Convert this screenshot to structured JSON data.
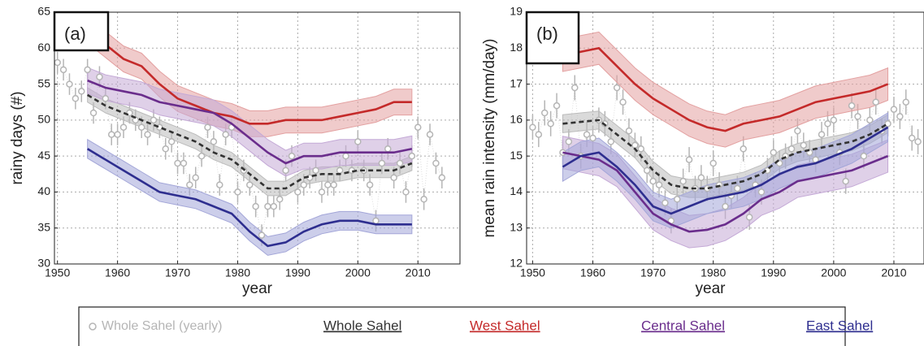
{
  "chart_data": [
    {
      "type": "line",
      "panel_label": "(a)",
      "x_label": "year",
      "y_label": "rainy days (#)",
      "xlim": [
        1949.5,
        2017
      ],
      "xticks": [
        1950,
        1960,
        1970,
        1980,
        1990,
        2000,
        2010
      ],
      "ylim": [
        30,
        65
      ],
      "yticks": [
        30,
        35,
        40,
        45,
        50,
        55,
        60,
        65
      ],
      "grid": true,
      "x": [
        1955,
        1958,
        1961,
        1964,
        1967,
        1970,
        1973,
        1976,
        1979,
        1982,
        1985,
        1988,
        1991,
        1994,
        1997,
        2000,
        2003,
        2006,
        2009
      ],
      "series": [
        {
          "name": "Whole Sahel",
          "color": "#333333",
          "band_color": "#bbbbbb",
          "dash": true,
          "band": 1,
          "values": [
            53.5,
            52,
            51,
            50,
            49,
            48,
            47,
            45.5,
            44.5,
            42.5,
            40.5,
            40.5,
            42,
            42.5,
            42.5,
            43,
            43,
            43,
            44
          ]
        },
        {
          "name": "West Sahel",
          "color": "#c42a2a",
          "band_color": "#e3a0a0",
          "dash": false,
          "band": 1.8,
          "values": [
            62.5,
            60.5,
            58.5,
            57.5,
            55,
            53,
            52,
            51,
            50.5,
            49.5,
            49.5,
            50,
            50,
            50,
            50.5,
            51,
            51.5,
            52.5,
            52.5
          ]
        },
        {
          "name": "Central Sahel",
          "color": "#6a2d8c",
          "band_color": "#c4a9d6",
          "dash": false,
          "band": 1.8,
          "values": [
            55.5,
            54.5,
            54,
            53.5,
            52.5,
            52,
            51.5,
            51,
            49.5,
            47.5,
            45.5,
            44,
            45,
            45,
            45.5,
            45.5,
            45.5,
            45.5,
            46
          ]
        },
        {
          "name": "East Sahel",
          "color": "#2e2e8f",
          "band_color": "#a3a6d8",
          "dash": false,
          "band": 1.3,
          "values": [
            46,
            44.5,
            43,
            41.5,
            40,
            39.5,
            39,
            38,
            37,
            34.5,
            32.5,
            33,
            34.5,
            35.5,
            36,
            36,
            35.5,
            35.5,
            35.5
          ]
        }
      ],
      "yearly": {
        "name": "Whole Sahel (yearly)",
        "color": "#b5b5b5",
        "error": 1.5,
        "x": [
          1950,
          1951,
          1952,
          1953,
          1954,
          1955,
          1956,
          1957,
          1958,
          1959,
          1960,
          1961,
          1962,
          1963,
          1964,
          1965,
          1966,
          1967,
          1968,
          1969,
          1970,
          1971,
          1972,
          1973,
          1974,
          1975,
          1976,
          1977,
          1978,
          1979,
          1980,
          1981,
          1982,
          1983,
          1984,
          1985,
          1986,
          1987,
          1988,
          1989,
          1990,
          1991,
          1992,
          1993,
          1994,
          1995,
          1996,
          1997,
          1998,
          1999,
          2000,
          2001,
          2002,
          2003,
          2004,
          2005,
          2006,
          2007,
          2008,
          2009,
          2010,
          2011,
          2012,
          2013,
          2014
        ],
        "values": [
          58,
          57,
          55,
          53,
          54,
          57,
          51,
          56,
          53,
          48,
          48,
          49,
          51,
          50,
          49,
          48,
          50,
          49,
          46,
          47,
          44,
          44,
          41,
          42,
          45,
          49,
          47,
          41,
          48,
          49,
          40,
          43,
          41,
          38,
          34,
          38,
          38,
          39,
          43,
          45,
          40,
          41,
          42,
          43,
          40,
          41,
          41,
          43,
          45,
          43,
          47,
          43,
          41,
          36,
          44,
          46,
          42,
          44,
          40,
          45,
          49,
          39,
          48,
          44,
          42
        ]
      }
    },
    {
      "type": "line",
      "panel_label": "(b)",
      "x_label": "year",
      "y_label": "mean rain intensity (mm/day)",
      "xlim": [
        1949,
        2015
      ],
      "xticks": [
        1950,
        1960,
        1970,
        1980,
        1990,
        2000,
        2010
      ],
      "ylim": [
        12,
        19
      ],
      "yticks": [
        12,
        13,
        14,
        15,
        16,
        17,
        18,
        19
      ],
      "grid": true,
      "x": [
        1955,
        1958,
        1961,
        1964,
        1967,
        1970,
        1973,
        1976,
        1979,
        1982,
        1985,
        1988,
        1991,
        1994,
        1997,
        2000,
        2003,
        2006,
        2009
      ],
      "series": [
        {
          "name": "Whole Sahel",
          "color": "#333333",
          "band_color": "#bbbbbb",
          "dash": true,
          "band": 0.25,
          "values": [
            15.9,
            15.95,
            16.0,
            15.6,
            15.2,
            14.6,
            14.2,
            14.1,
            14.1,
            14.2,
            14.3,
            14.5,
            14.9,
            15.1,
            15.2,
            15.3,
            15.4,
            15.6,
            15.9
          ]
        },
        {
          "name": "West Sahel",
          "color": "#c42a2a",
          "band_color": "#e3a0a0",
          "dash": false,
          "band": 0.45,
          "values": [
            17.8,
            17.9,
            18.0,
            17.5,
            17.0,
            16.6,
            16.3,
            16.0,
            15.8,
            15.7,
            15.9,
            16.0,
            16.1,
            16.3,
            16.5,
            16.6,
            16.7,
            16.8,
            17.0
          ]
        },
        {
          "name": "Central Sahel",
          "color": "#6a2d8c",
          "band_color": "#c4a9d6",
          "dash": false,
          "band": 0.45,
          "values": [
            15.1,
            15.0,
            14.9,
            14.6,
            14.0,
            13.4,
            13.1,
            12.9,
            12.95,
            13.1,
            13.4,
            13.8,
            14.0,
            14.3,
            14.4,
            14.5,
            14.6,
            14.8,
            15.0
          ]
        },
        {
          "name": "East Sahel",
          "color": "#2e2e8f",
          "band_color": "#a3a6d8",
          "dash": false,
          "band": 0.4,
          "values": [
            14.7,
            15.0,
            15.1,
            14.7,
            14.2,
            13.6,
            13.4,
            13.6,
            13.8,
            13.9,
            14.0,
            14.2,
            14.5,
            14.7,
            14.8,
            15.0,
            15.2,
            15.5,
            15.8
          ]
        }
      ],
      "yearly": {
        "name": "Whole Sahel (yearly)",
        "color": "#b5b5b5",
        "error": 0.35,
        "x": [
          1950,
          1951,
          1952,
          1953,
          1954,
          1955,
          1956,
          1957,
          1958,
          1959,
          1960,
          1961,
          1962,
          1963,
          1964,
          1965,
          1966,
          1967,
          1968,
          1969,
          1970,
          1971,
          1972,
          1973,
          1974,
          1975,
          1976,
          1977,
          1978,
          1979,
          1980,
          1981,
          1982,
          1983,
          1984,
          1985,
          1986,
          1987,
          1988,
          1989,
          1990,
          1991,
          1992,
          1993,
          1994,
          1995,
          1996,
          1997,
          1998,
          1999,
          2000,
          2001,
          2002,
          2003,
          2004,
          2005,
          2006,
          2007,
          2008,
          2009,
          2010,
          2011,
          2012,
          2013,
          2014
        ],
        "values": [
          15.8,
          15.6,
          16.2,
          15.9,
          16.4,
          15.1,
          15.4,
          16.9,
          15.0,
          15.6,
          15.5,
          16.0,
          15.9,
          15.4,
          16.9,
          16.5,
          15.7,
          15.3,
          15.2,
          14.6,
          14.3,
          14.2,
          13.7,
          13.2,
          13.8,
          14.3,
          14.9,
          14.1,
          14.4,
          14.1,
          14.8,
          14.2,
          13.6,
          13.9,
          14.1,
          15.2,
          13.3,
          14.2,
          14.0,
          14.6,
          15.1,
          14.8,
          15.0,
          15.2,
          15.7,
          15.3,
          15.1,
          14.9,
          15.6,
          15.9,
          16.0,
          15.1,
          14.3,
          16.4,
          16.1,
          15.0,
          16.0,
          16.5,
          15.7,
          15.9,
          16.3,
          16.1,
          16.5,
          15.5,
          15.4
        ]
      }
    }
  ]
}
